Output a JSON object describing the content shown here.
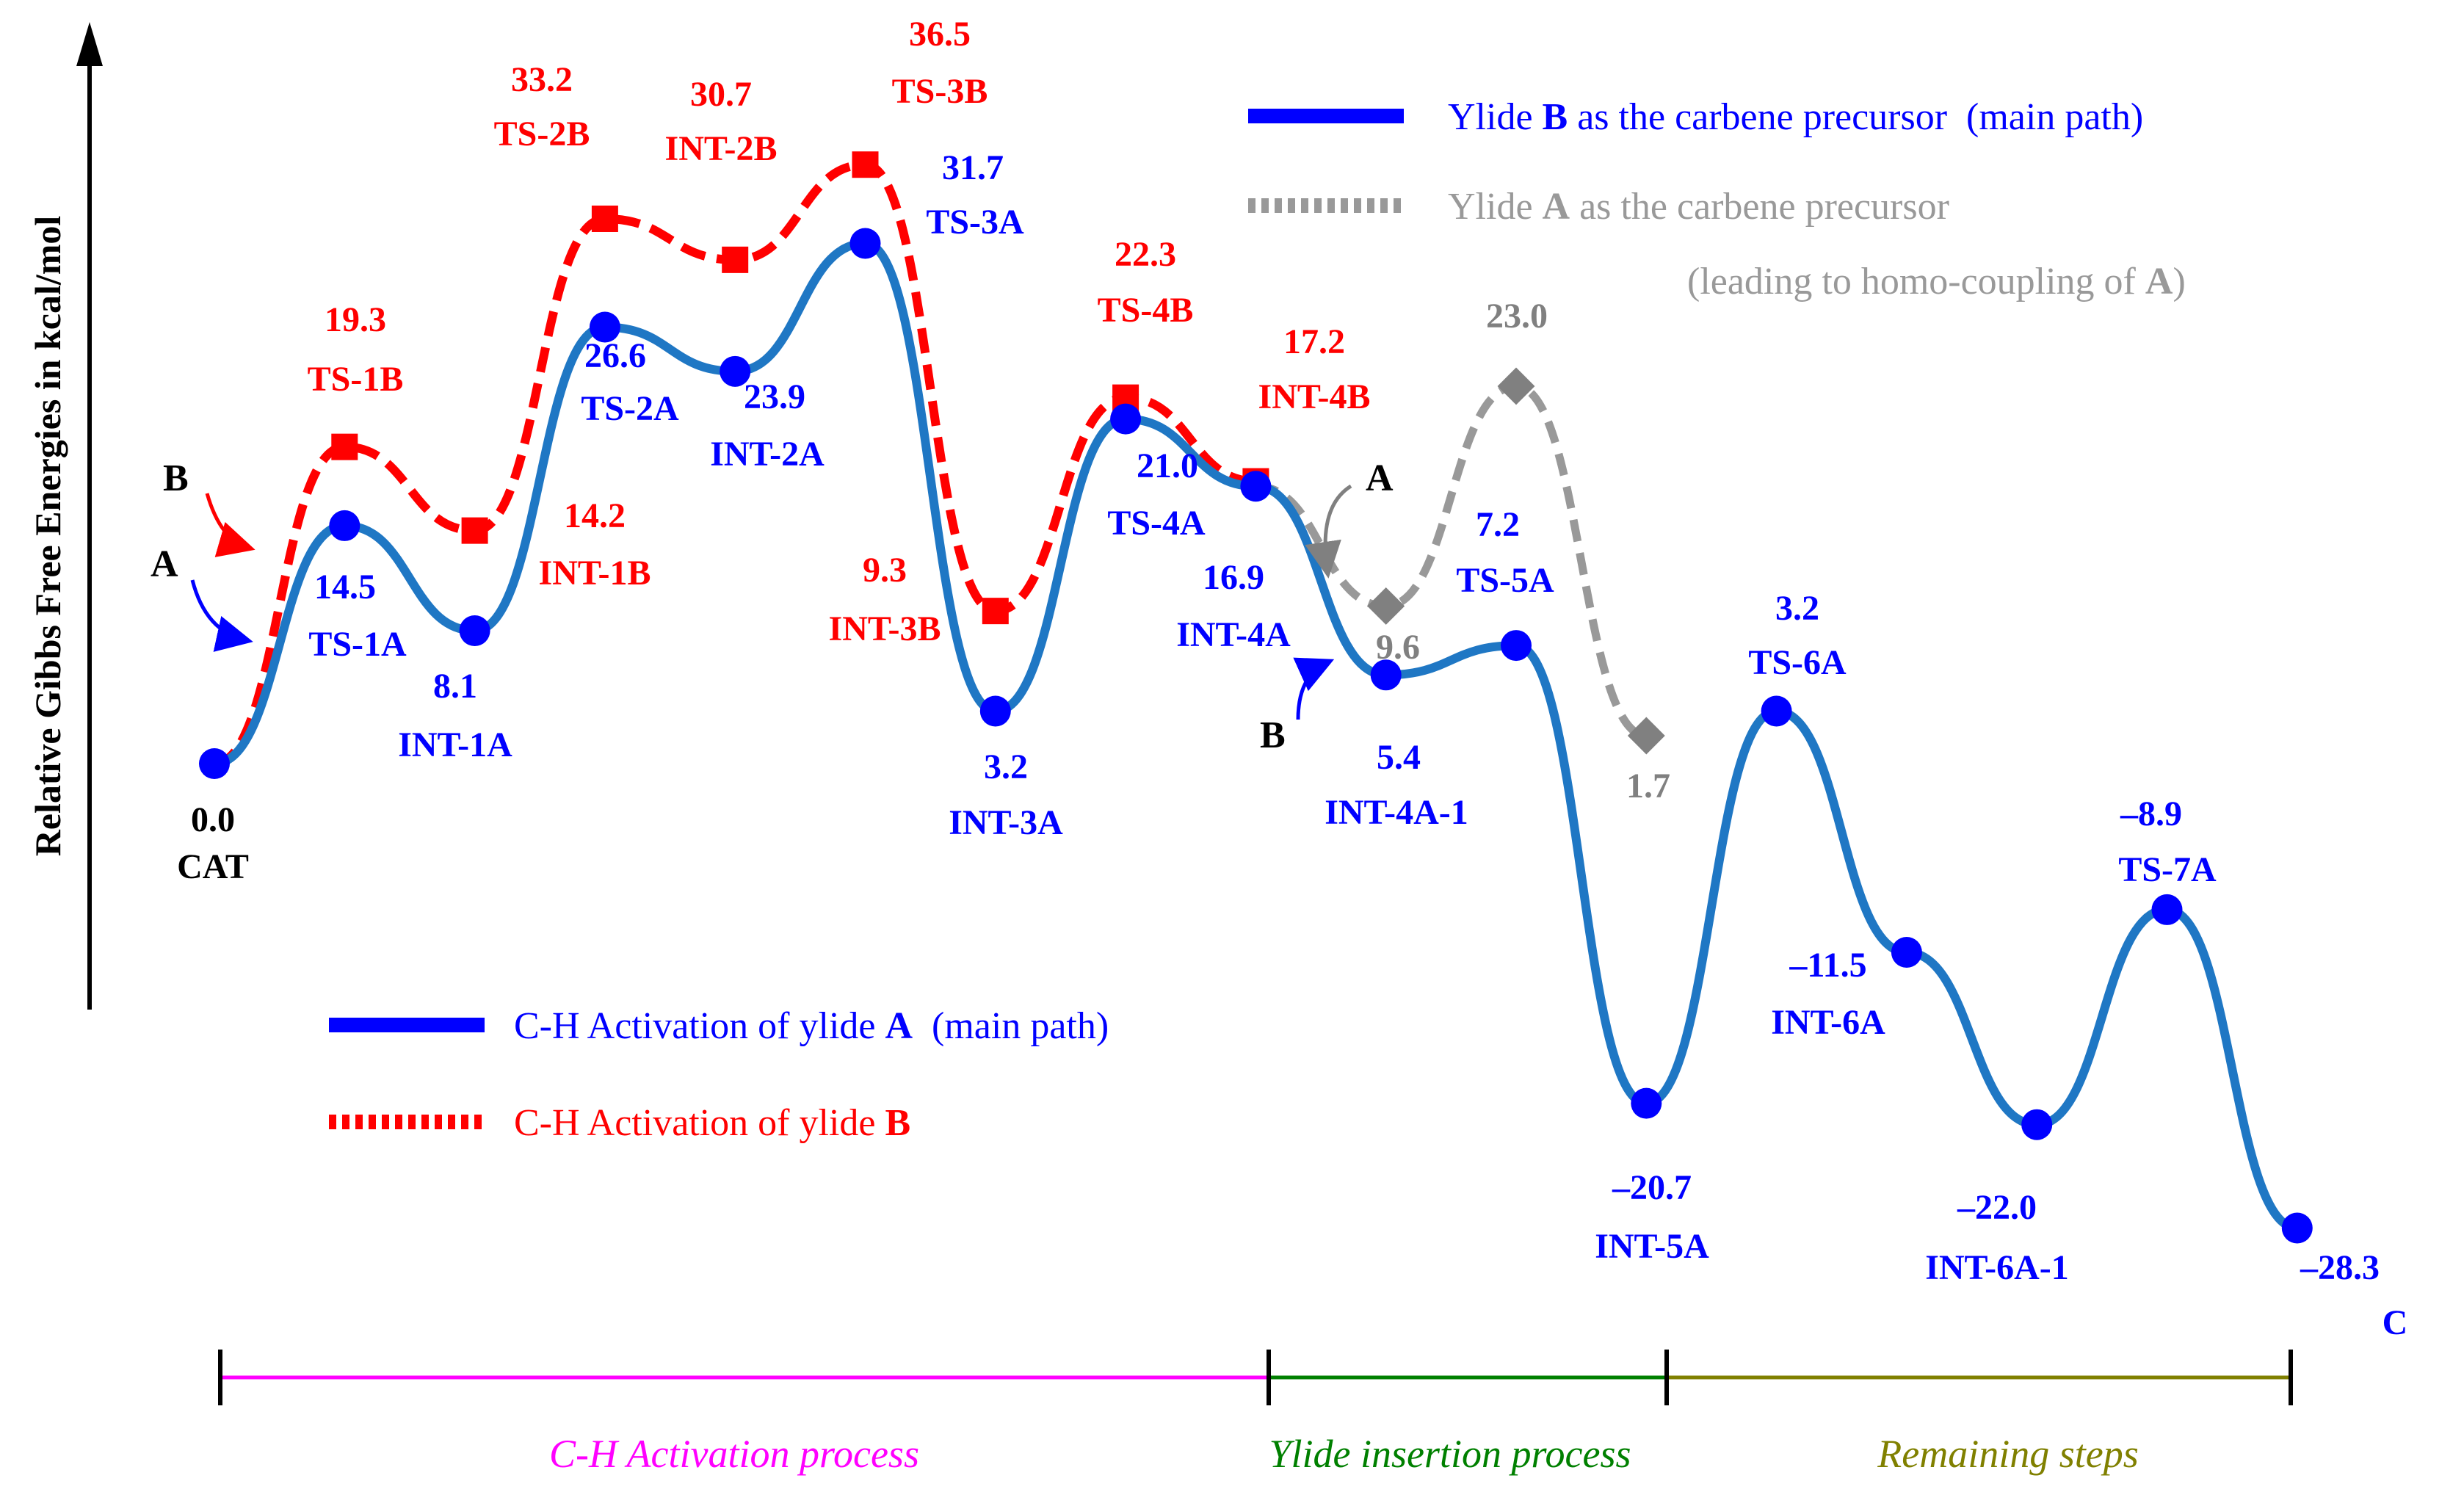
{
  "chart_data": {
    "type": "line",
    "title": "",
    "ylabel": "Relative Gibbs Free Energies in kcal/mol",
    "xlabel": "",
    "series": [
      {
        "name": "C-H Activation of ylide A (main path)",
        "color": "#1f77c4",
        "marker_color": "#0000ff",
        "points": [
          {
            "x": 0,
            "y": 0.0,
            "label": "CAT"
          },
          {
            "x": 1,
            "y": 14.5,
            "label": "TS-1A"
          },
          {
            "x": 2,
            "y": 8.1,
            "label": "INT-1A"
          },
          {
            "x": 3,
            "y": 26.6,
            "label": "TS-2A"
          },
          {
            "x": 4,
            "y": 23.9,
            "label": "INT-2A"
          },
          {
            "x": 5,
            "y": 31.7,
            "label": "TS-3A"
          },
          {
            "x": 6,
            "y": 3.2,
            "label": "INT-3A"
          },
          {
            "x": 7,
            "y": 21.0,
            "label": "TS-4A"
          },
          {
            "x": 8,
            "y": 16.9,
            "label": "INT-4A"
          },
          {
            "x": 9,
            "y": 5.4,
            "label": "INT-4A-1"
          },
          {
            "x": 10,
            "y": 7.2,
            "label": "TS-5A"
          },
          {
            "x": 11,
            "y": -20.7,
            "label": "INT-5A"
          },
          {
            "x": 12,
            "y": 3.2,
            "label": "TS-6A"
          },
          {
            "x": 13,
            "y": -11.5,
            "label": "INT-6A"
          },
          {
            "x": 14,
            "y": -22.0,
            "label": "INT-6A-1"
          },
          {
            "x": 15,
            "y": -8.9,
            "label": "TS-7A"
          },
          {
            "x": 16,
            "y": -28.3,
            "label": "C"
          }
        ]
      },
      {
        "name": "C-H Activation of ylide B",
        "color": "#ff0000",
        "points": [
          {
            "x": 0,
            "y": 0.0
          },
          {
            "x": 1,
            "y": 19.3,
            "label": "TS-1B"
          },
          {
            "x": 2,
            "y": 14.2,
            "label": "INT-1B"
          },
          {
            "x": 3,
            "y": 33.2,
            "label": "TS-2B"
          },
          {
            "x": 4,
            "y": 30.7,
            "label": "INT-2B"
          },
          {
            "x": 5,
            "y": 36.5,
            "label": "TS-3B"
          },
          {
            "x": 6,
            "y": 9.3,
            "label": "INT-3B"
          },
          {
            "x": 7,
            "y": 22.3,
            "label": "TS-4B"
          },
          {
            "x": 8,
            "y": 17.2,
            "label": "INT-4B"
          }
        ]
      },
      {
        "name": "Ylide A as the carbene precursor (leading to homo-coupling of A)",
        "color": "#999999",
        "marker_color": "#808080",
        "points": [
          {
            "x": 8,
            "y": 16.9
          },
          {
            "x": 9,
            "y": 9.6
          },
          {
            "x": 10,
            "y": 23.0
          },
          {
            "x": 11,
            "y": 1.7
          }
        ]
      }
    ],
    "legend_bottom": [
      {
        "prefix": "C-H Activation of ylide ",
        "bold": "A",
        "suffix": "  (main path)",
        "color": "#0000ff"
      },
      {
        "prefix": "C-H Activation of ylide ",
        "bold": "B",
        "suffix": "",
        "color": "#ff0000"
      }
    ],
    "legend_top": [
      {
        "prefix": "Ylide ",
        "bold": "B",
        "suffix": " as the carbene precursor  (main path)",
        "color": "#0000ff"
      },
      {
        "prefix": "Ylide ",
        "bold": "A",
        "suffix": " as the carbene precursor",
        "color": "#999999"
      }
    ],
    "legend_top_note": {
      "prefix": "(leading to homo-coupling of ",
      "bold": "A",
      "suffix": ")"
    },
    "annotations": {
      "A": "A",
      "B": "B"
    },
    "phases": [
      {
        "name": "C-H Activation process",
        "color": "#ff00ff"
      },
      {
        "name": "Ylide insertion process",
        "color": "#008000"
      },
      {
        "name": "Remaining steps",
        "color": "#808000"
      }
    ]
  }
}
